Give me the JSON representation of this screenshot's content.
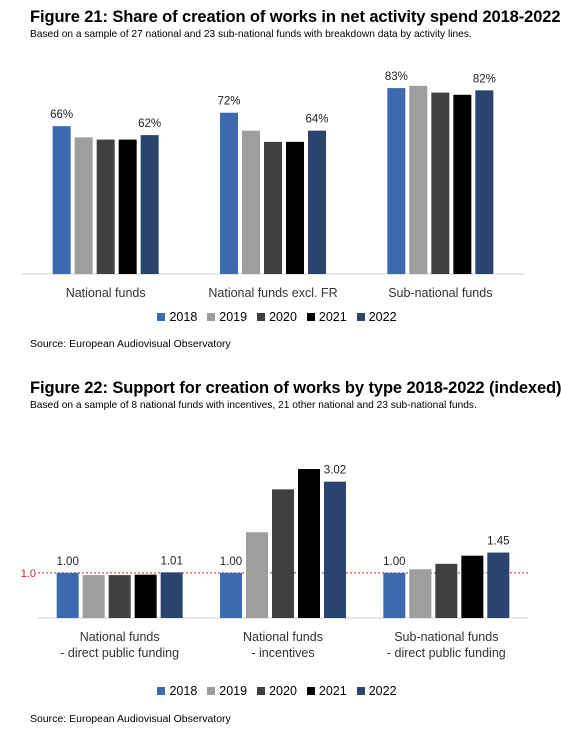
{
  "colors": [
    "#3c6ab0",
    "#9e9e9e",
    "#404040",
    "#000000",
    "#2a4470"
  ],
  "figure21": {
    "title": "Figure 21: Share of creation of works in net activity spend 2018-2022",
    "subtitle": "Based on a sample of 27 national  and 23 sub-national funds with breakdown data by activity lines.",
    "source": "Source: European Audiovisual Observatory"
  },
  "figure22": {
    "title": "Figure 22: Support for creation of works by type 2018-2022 (indexed)",
    "subtitle": "Based on a sample of 8 national funds with incentives, 21 other national and 23 sub-national funds.",
    "source": "Source: European Audiovisual Observatory",
    "reference_label": "1.0"
  },
  "chart_data": [
    {
      "type": "bar",
      "title": "Figure 21: Share of creation of works in net activity spend 2018-2022",
      "categories": [
        [
          "National funds"
        ],
        [
          "National funds excl. FR"
        ],
        [
          "Sub-national funds"
        ]
      ],
      "series": [
        {
          "name": "2018",
          "values": [
            0.66,
            0.72,
            0.83
          ]
        },
        {
          "name": "2019",
          "values": [
            0.61,
            0.64,
            0.84
          ]
        },
        {
          "name": "2020",
          "values": [
            0.6,
            0.59,
            0.81
          ]
        },
        {
          "name": "2021",
          "values": [
            0.6,
            0.59,
            0.8
          ]
        },
        {
          "name": "2022",
          "values": [
            0.62,
            0.64,
            0.82
          ]
        }
      ],
      "data_labels": [
        [
          "66%",
          "",
          "",
          "",
          "62%"
        ],
        [
          "72%",
          "",
          "",
          "",
          "64%"
        ],
        [
          "83%",
          "",
          "",
          "",
          "82%"
        ]
      ],
      "ylim": [
        0,
        1.0
      ],
      "legend": "bottom",
      "grid": false
    },
    {
      "type": "bar",
      "title": "Figure 22: Support for creation of works by type 2018-2022 (indexed)",
      "categories": [
        [
          "National funds",
          "- direct public funding"
        ],
        [
          "National funds",
          "- incentives"
        ],
        [
          "Sub-national funds",
          "- direct public funding"
        ]
      ],
      "series": [
        {
          "name": "2018",
          "values": [
            1.0,
            1.0,
            1.0
          ]
        },
        {
          "name": "2019",
          "values": [
            0.95,
            1.9,
            1.08
          ]
        },
        {
          "name": "2020",
          "values": [
            0.95,
            2.85,
            1.2
          ]
        },
        {
          "name": "2021",
          "values": [
            0.96,
            3.3,
            1.38
          ]
        },
        {
          "name": "2022",
          "values": [
            1.01,
            3.02,
            1.45
          ]
        }
      ],
      "data_labels": [
        [
          "1.00",
          "",
          "",
          "",
          "1.01"
        ],
        [
          "1.00",
          "",
          "",
          "",
          "3.02"
        ],
        [
          "1.00",
          "",
          "",
          "",
          "1.45"
        ]
      ],
      "reference_line": 1.0,
      "ylim": [
        0,
        3.5
      ],
      "legend": "bottom",
      "grid": false
    }
  ]
}
